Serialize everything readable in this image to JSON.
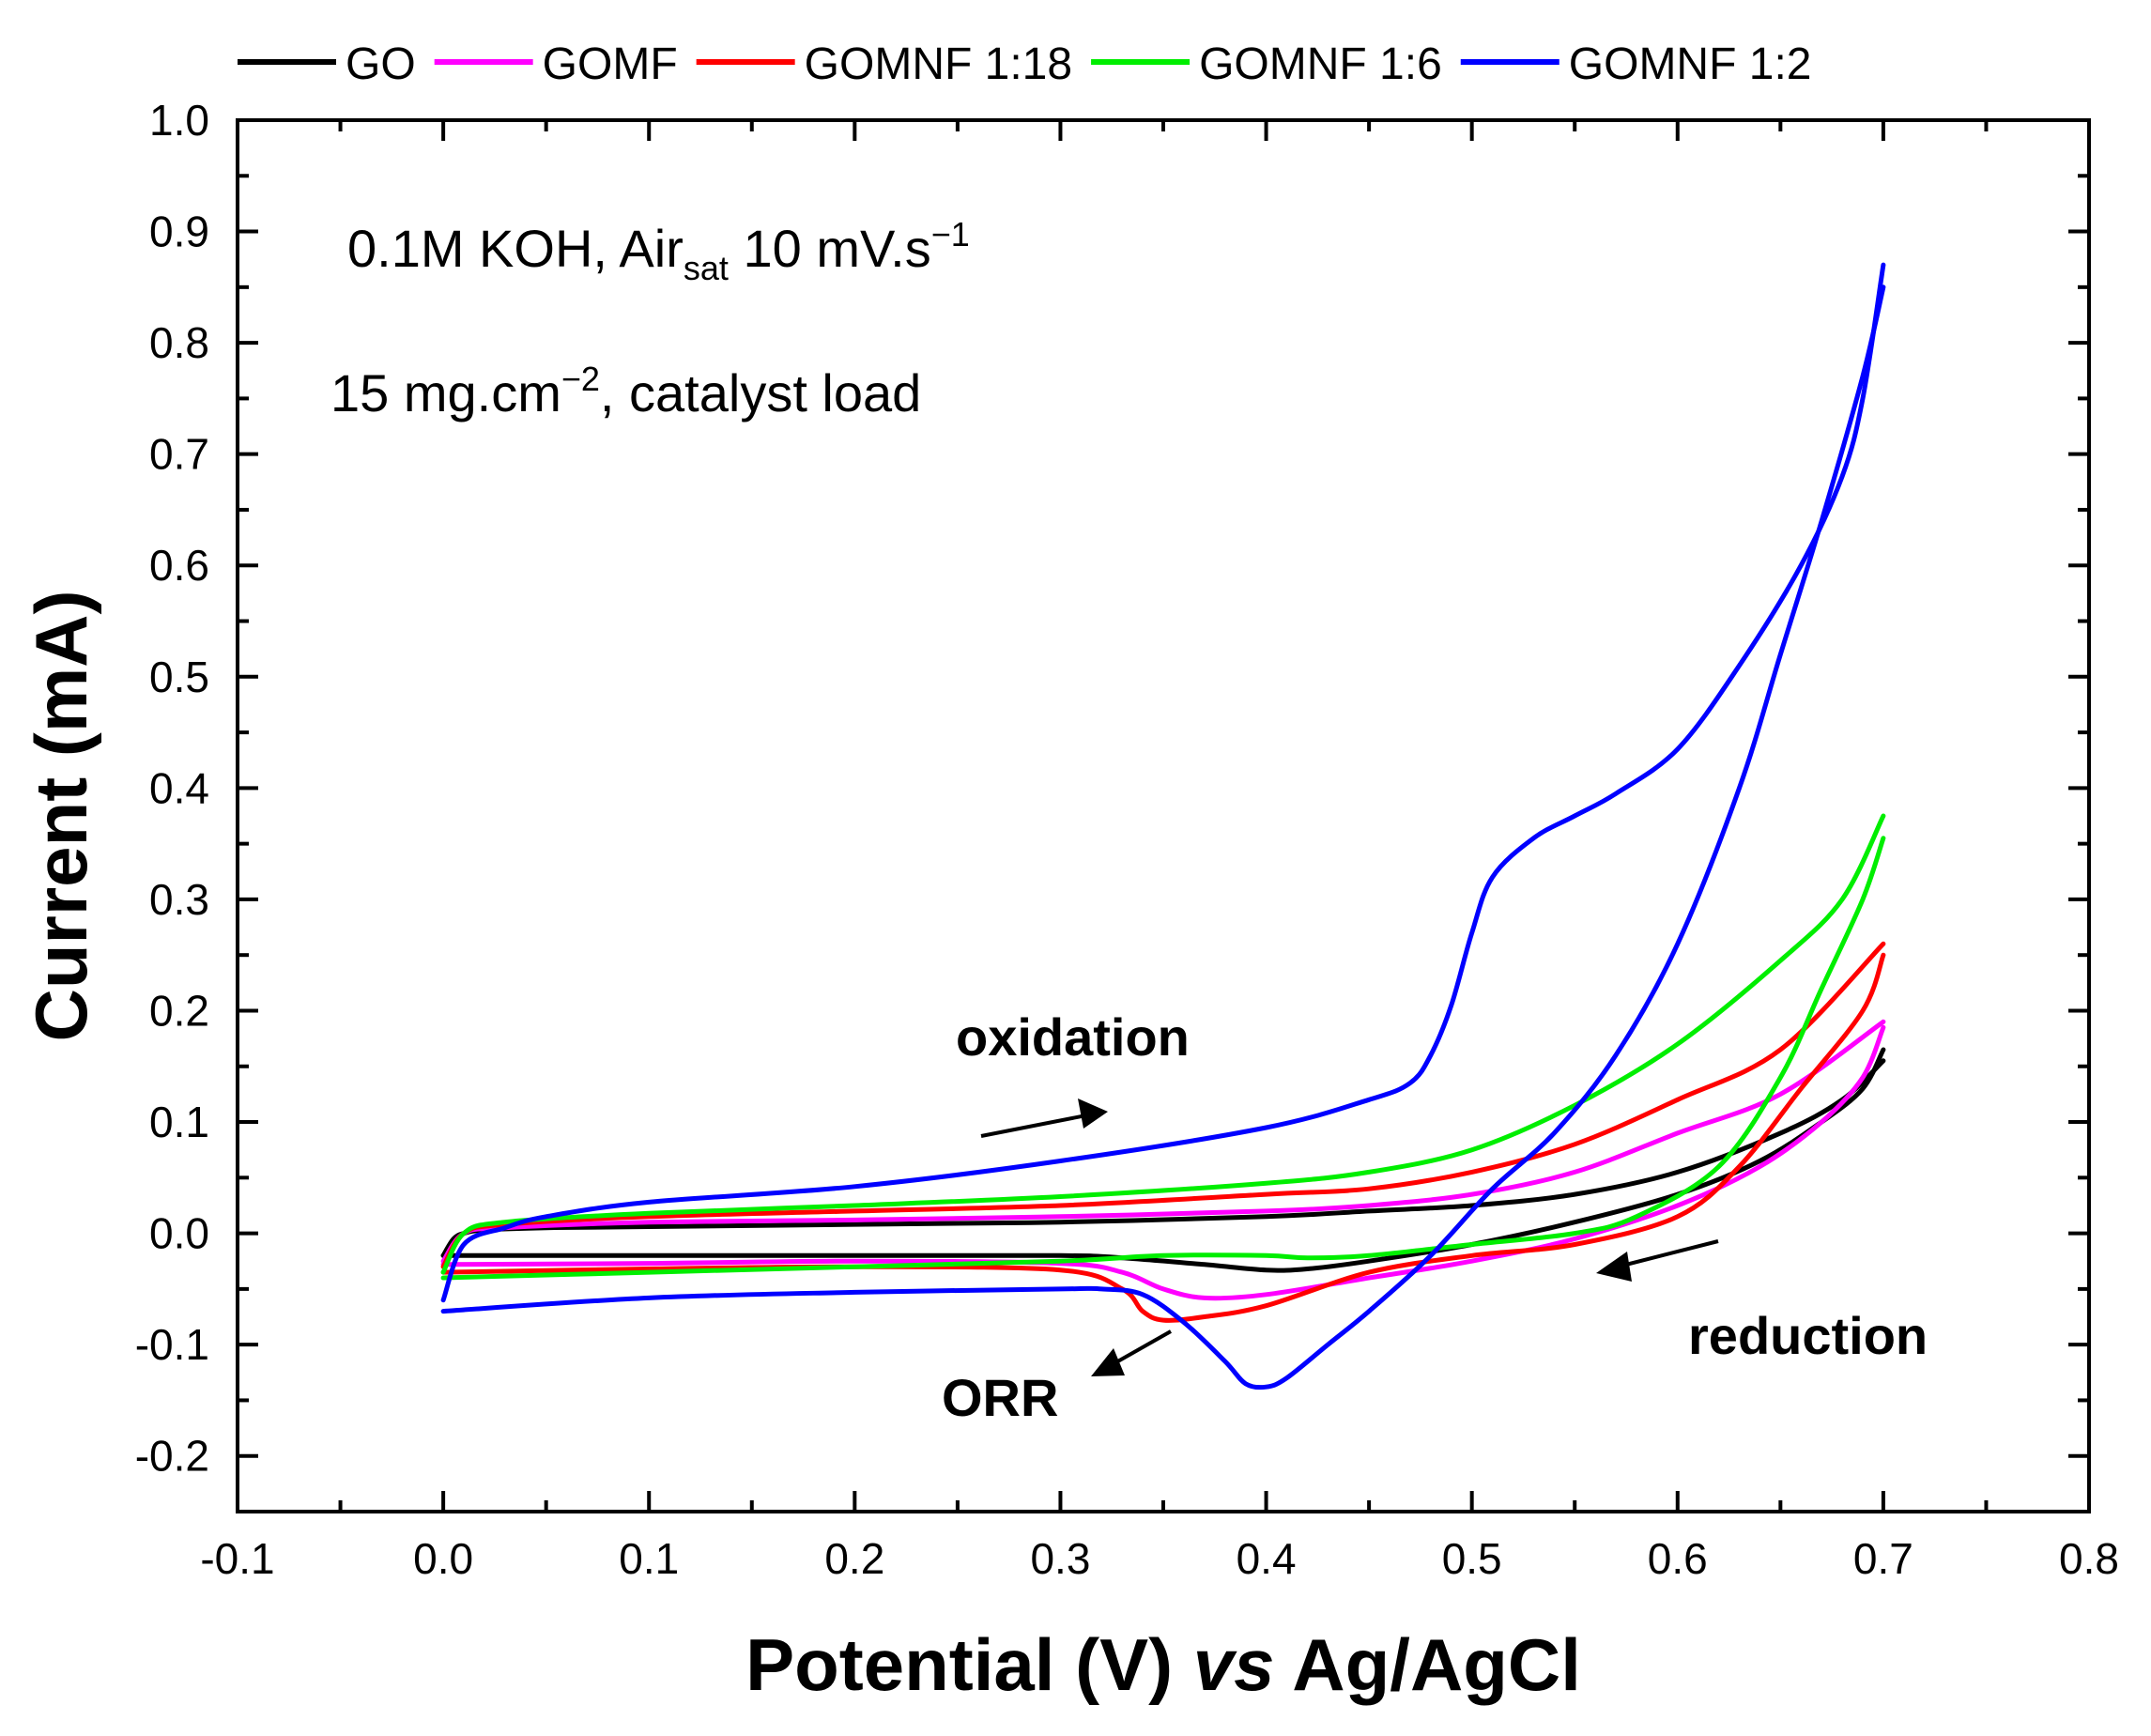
{
  "chart_data": {
    "type": "line",
    "xlabel": {
      "prefix": "Potential (V) ",
      "italic": "vs",
      "suffix": " Ag/AgCl"
    },
    "ylabel": "Current (mA)",
    "xlim": [
      -0.1,
      0.8
    ],
    "ylim": [
      -0.25,
      1.0
    ],
    "x_ticks": [
      -0.1,
      0.0,
      0.1,
      0.2,
      0.3,
      0.4,
      0.5,
      0.6,
      0.7,
      0.8
    ],
    "x_tick_labels": [
      "-0.1",
      "0.0",
      "0.1",
      "0.2",
      "0.3",
      "0.4",
      "0.5",
      "0.6",
      "0.7",
      "0.8"
    ],
    "y_ticks": [
      -0.2,
      -0.1,
      0.0,
      0.1,
      0.2,
      0.3,
      0.4,
      0.5,
      0.6,
      0.7,
      0.8,
      0.9,
      1.0
    ],
    "y_tick_labels": [
      "-0.2",
      "-0.1",
      "0.0",
      "0.1",
      "0.2",
      "0.3",
      "0.4",
      "0.5",
      "0.6",
      "0.7",
      "0.8",
      "0.9",
      "1.0"
    ],
    "legend_position": "top",
    "conditions": {
      "line1_main": "0.1M KOH, Air",
      "line1_sub": "sat",
      "line1_rest": " 10 mV.s",
      "line1_sup": "−1",
      "line2_main": "15 mg.cm",
      "line2_sup": "−2",
      "line2_rest": ", catalyst load"
    },
    "annotations": {
      "oxidation": "oxidation",
      "reduction": "reduction",
      "orr": "ORR"
    },
    "series": [
      {
        "name": "GO",
        "color": "#000000",
        "upper": [
          [
            0.0,
            -0.02
          ],
          [
            0.005,
            -0.005
          ],
          [
            0.01,
            0.0
          ],
          [
            0.02,
            0.003
          ],
          [
            0.05,
            0.005
          ],
          [
            0.1,
            0.006
          ],
          [
            0.2,
            0.008
          ],
          [
            0.3,
            0.01
          ],
          [
            0.4,
            0.015
          ],
          [
            0.45,
            0.02
          ],
          [
            0.5,
            0.025
          ],
          [
            0.55,
            0.035
          ],
          [
            0.6,
            0.055
          ],
          [
            0.65,
            0.09
          ],
          [
            0.68,
            0.12
          ],
          [
            0.7,
            0.155
          ]
        ],
        "lower": [
          [
            0.7,
            0.165
          ],
          [
            0.69,
            0.13
          ],
          [
            0.67,
            0.1
          ],
          [
            0.64,
            0.065
          ],
          [
            0.6,
            0.035
          ],
          [
            0.55,
            0.01
          ],
          [
            0.5,
            -0.01
          ],
          [
            0.45,
            -0.025
          ],
          [
            0.42,
            -0.032
          ],
          [
            0.4,
            -0.033
          ],
          [
            0.37,
            -0.028
          ],
          [
            0.33,
            -0.022
          ],
          [
            0.3,
            -0.02
          ],
          [
            0.2,
            -0.02
          ],
          [
            0.1,
            -0.02
          ],
          [
            0.0,
            -0.02
          ]
        ]
      },
      {
        "name": "GOMF",
        "color": "#ff00ff",
        "upper": [
          [
            0.0,
            -0.025
          ],
          [
            0.01,
            0.0
          ],
          [
            0.03,
            0.005
          ],
          [
            0.1,
            0.01
          ],
          [
            0.2,
            0.012
          ],
          [
            0.3,
            0.015
          ],
          [
            0.4,
            0.02
          ],
          [
            0.45,
            0.025
          ],
          [
            0.5,
            0.035
          ],
          [
            0.55,
            0.055
          ],
          [
            0.6,
            0.09
          ],
          [
            0.65,
            0.125
          ],
          [
            0.7,
            0.19
          ]
        ],
        "lower": [
          [
            0.7,
            0.185
          ],
          [
            0.69,
            0.14
          ],
          [
            0.67,
            0.1
          ],
          [
            0.64,
            0.06
          ],
          [
            0.6,
            0.025
          ],
          [
            0.55,
            -0.005
          ],
          [
            0.5,
            -0.025
          ],
          [
            0.45,
            -0.04
          ],
          [
            0.4,
            -0.055
          ],
          [
            0.37,
            -0.058
          ],
          [
            0.35,
            -0.05
          ],
          [
            0.33,
            -0.035
          ],
          [
            0.3,
            -0.027
          ],
          [
            0.2,
            -0.025
          ],
          [
            0.1,
            -0.027
          ],
          [
            0.0,
            -0.028
          ]
        ]
      },
      {
        "name": "GOMNF 1:18",
        "color": "#ff0000",
        "upper": [
          [
            0.0,
            -0.03
          ],
          [
            0.01,
            0.0
          ],
          [
            0.03,
            0.008
          ],
          [
            0.1,
            0.015
          ],
          [
            0.2,
            0.02
          ],
          [
            0.3,
            0.025
          ],
          [
            0.4,
            0.035
          ],
          [
            0.45,
            0.04
          ],
          [
            0.5,
            0.055
          ],
          [
            0.55,
            0.08
          ],
          [
            0.6,
            0.12
          ],
          [
            0.65,
            0.165
          ],
          [
            0.7,
            0.26
          ]
        ],
        "lower": [
          [
            0.7,
            0.25
          ],
          [
            0.69,
            0.2
          ],
          [
            0.66,
            0.13
          ],
          [
            0.63,
            0.06
          ],
          [
            0.6,
            0.015
          ],
          [
            0.55,
            -0.01
          ],
          [
            0.5,
            -0.02
          ],
          [
            0.45,
            -0.035
          ],
          [
            0.4,
            -0.065
          ],
          [
            0.37,
            -0.075
          ],
          [
            0.35,
            -0.078
          ],
          [
            0.34,
            -0.07
          ],
          [
            0.33,
            -0.05
          ],
          [
            0.3,
            -0.033
          ],
          [
            0.2,
            -0.03
          ],
          [
            0.1,
            -0.032
          ],
          [
            0.0,
            -0.035
          ]
        ]
      },
      {
        "name": "GOMNF 1:6",
        "color": "#00ee00",
        "upper": [
          [
            0.0,
            -0.035
          ],
          [
            0.01,
            0.0
          ],
          [
            0.03,
            0.01
          ],
          [
            0.1,
            0.018
          ],
          [
            0.2,
            0.025
          ],
          [
            0.3,
            0.033
          ],
          [
            0.4,
            0.045
          ],
          [
            0.45,
            0.055
          ],
          [
            0.5,
            0.075
          ],
          [
            0.55,
            0.115
          ],
          [
            0.6,
            0.17
          ],
          [
            0.65,
            0.245
          ],
          [
            0.68,
            0.3
          ],
          [
            0.7,
            0.375
          ]
        ],
        "lower": [
          [
            0.7,
            0.355
          ],
          [
            0.69,
            0.3
          ],
          [
            0.67,
            0.22
          ],
          [
            0.65,
            0.14
          ],
          [
            0.62,
            0.06
          ],
          [
            0.58,
            0.015
          ],
          [
            0.55,
            0.0
          ],
          [
            0.5,
            -0.01
          ],
          [
            0.45,
            -0.02
          ],
          [
            0.42,
            -0.022
          ],
          [
            0.4,
            -0.02
          ],
          [
            0.35,
            -0.02
          ],
          [
            0.3,
            -0.025
          ],
          [
            0.2,
            -0.03
          ],
          [
            0.1,
            -0.035
          ],
          [
            0.0,
            -0.04
          ]
        ]
      },
      {
        "name": "GOMNF 1:2",
        "color": "#0000ff",
        "upper": [
          [
            0.0,
            -0.06
          ],
          [
            0.01,
            -0.01
          ],
          [
            0.03,
            0.005
          ],
          [
            0.05,
            0.015
          ],
          [
            0.1,
            0.028
          ],
          [
            0.2,
            0.042
          ],
          [
            0.3,
            0.065
          ],
          [
            0.4,
            0.095
          ],
          [
            0.45,
            0.12
          ],
          [
            0.47,
            0.135
          ],
          [
            0.48,
            0.16
          ],
          [
            0.49,
            0.205
          ],
          [
            0.5,
            0.27
          ],
          [
            0.51,
            0.32
          ],
          [
            0.53,
            0.355
          ],
          [
            0.55,
            0.375
          ],
          [
            0.57,
            0.395
          ],
          [
            0.6,
            0.435
          ],
          [
            0.63,
            0.51
          ],
          [
            0.66,
            0.6
          ],
          [
            0.68,
            0.68
          ],
          [
            0.69,
            0.75
          ],
          [
            0.7,
            0.87
          ]
        ],
        "lower": [
          [
            0.7,
            0.85
          ],
          [
            0.69,
            0.77
          ],
          [
            0.67,
            0.64
          ],
          [
            0.65,
            0.52
          ],
          [
            0.63,
            0.4
          ],
          [
            0.6,
            0.26
          ],
          [
            0.57,
            0.16
          ],
          [
            0.54,
            0.09
          ],
          [
            0.51,
            0.04
          ],
          [
            0.48,
            -0.02
          ],
          [
            0.45,
            -0.07
          ],
          [
            0.43,
            -0.1
          ],
          [
            0.41,
            -0.13
          ],
          [
            0.4,
            -0.138
          ],
          [
            0.39,
            -0.135
          ],
          [
            0.38,
            -0.115
          ],
          [
            0.36,
            -0.08
          ],
          [
            0.34,
            -0.055
          ],
          [
            0.32,
            -0.05
          ],
          [
            0.3,
            -0.05
          ],
          [
            0.2,
            -0.053
          ],
          [
            0.1,
            -0.058
          ],
          [
            0.0,
            -0.07
          ]
        ]
      }
    ]
  }
}
